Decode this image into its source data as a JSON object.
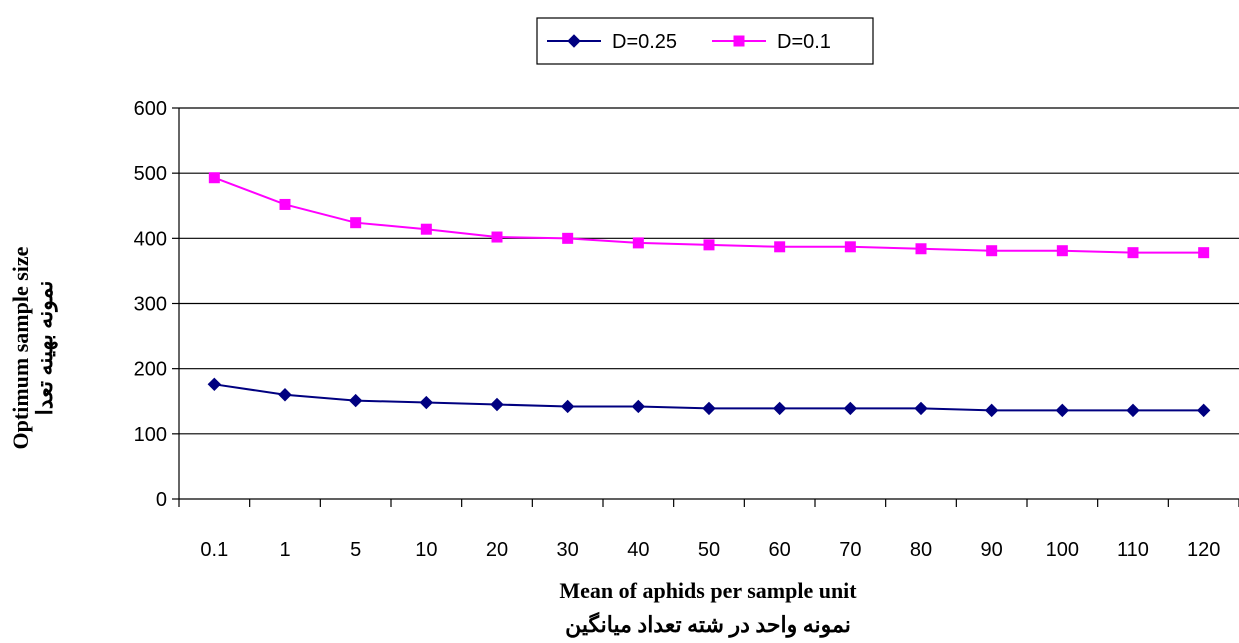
{
  "chart_data": {
    "type": "line",
    "title": "",
    "xlabel": "Mean of aphids per sample unit",
    "xlabel_secondary": "نمونه واحد در شته تعداد میانگین",
    "ylabel": "Optimum sample size",
    "ylabel_secondary": "نمونه بهینه تعدا",
    "categories": [
      "0.1",
      "1",
      "5",
      "10",
      "20",
      "30",
      "40",
      "50",
      "60",
      "70",
      "80",
      "90",
      "100",
      "110",
      "120"
    ],
    "ylim": [
      0,
      600
    ],
    "yticks": [
      "0",
      "100",
      "200",
      "300",
      "400",
      "500",
      "600"
    ],
    "grid": "horizontal",
    "legend_position": "top",
    "series": [
      {
        "name": "D=0.25",
        "color": "#000080",
        "marker": "diamond",
        "values": [
          176,
          160,
          151,
          148,
          145,
          142,
          142,
          139,
          139,
          139,
          139,
          136,
          136,
          136,
          136
        ]
      },
      {
        "name": "D=0.1",
        "color": "#ff00ff",
        "marker": "square",
        "values": [
          493,
          452,
          424,
          414,
          402,
          400,
          393,
          390,
          387,
          387,
          384,
          381,
          381,
          378,
          378
        ]
      }
    ]
  }
}
